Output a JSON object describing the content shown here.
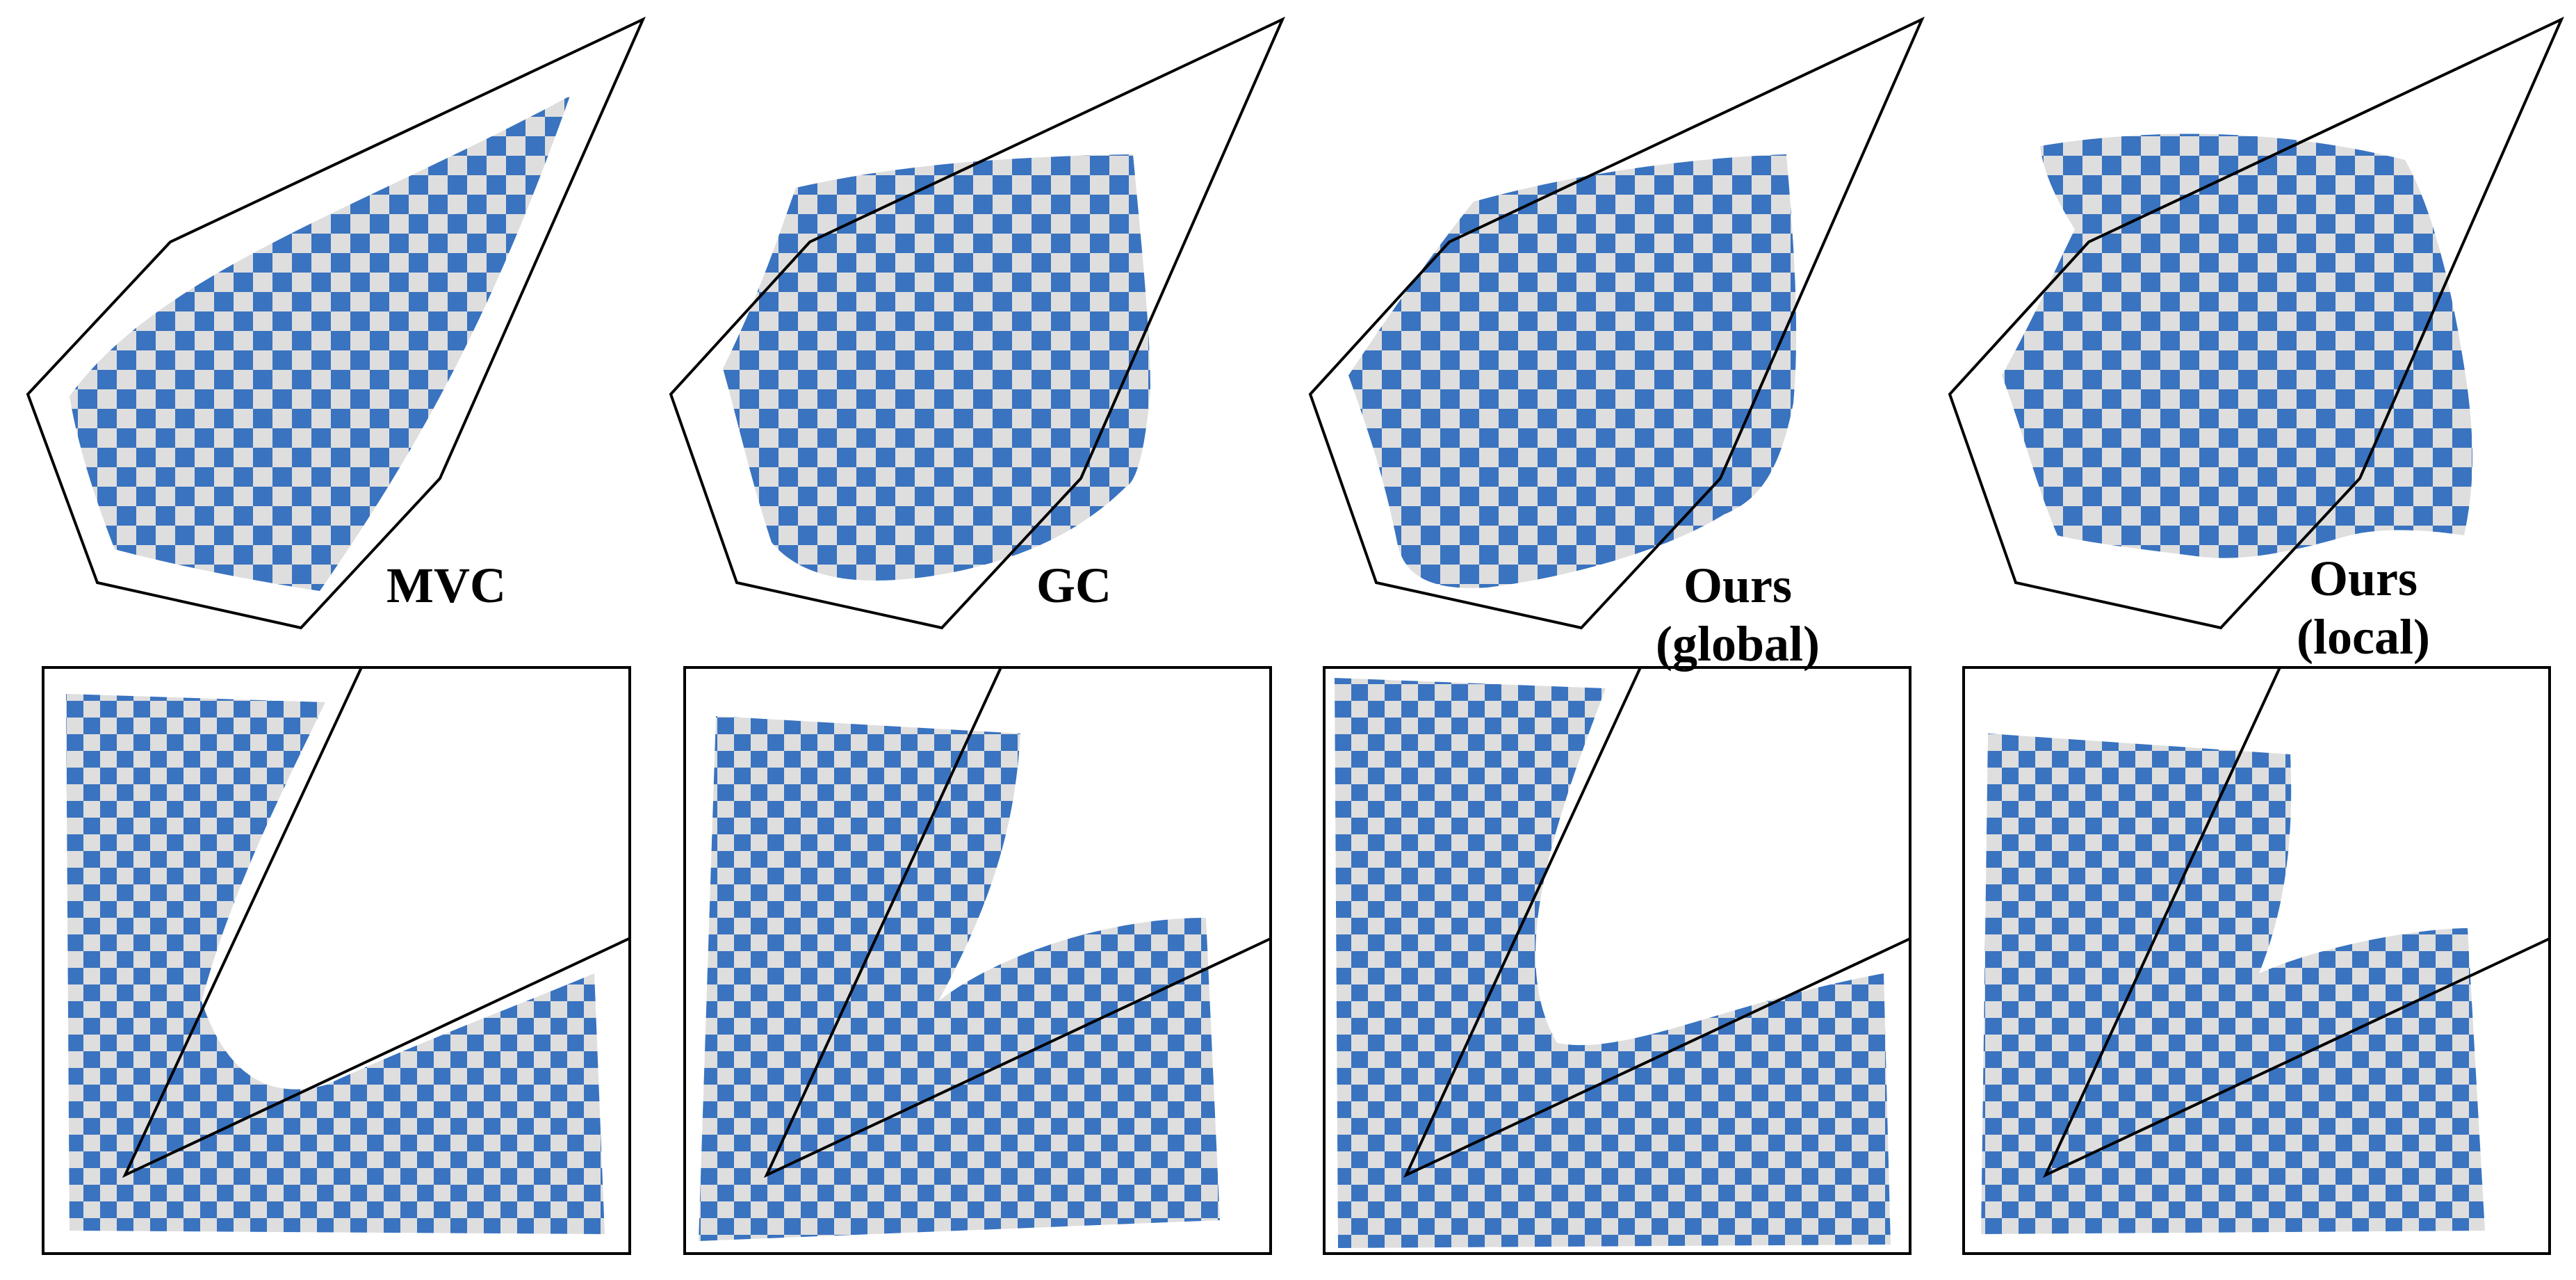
{
  "figure": {
    "background": "#ffffff",
    "checker_colors": {
      "blue": "#3a73bf",
      "light": "#dedede"
    },
    "cage_color": "#000000",
    "panels_top": [
      {
        "id": "mvc",
        "caption_lines": [
          "MVC"
        ]
      },
      {
        "id": "gc",
        "caption_lines": [
          "GC"
        ]
      },
      {
        "id": "ours-global",
        "caption_lines": [
          "Ours",
          "(global)"
        ]
      },
      {
        "id": "ours-local",
        "caption_lines": [
          "Ours",
          "(local)"
        ]
      }
    ],
    "panels_bottom": [
      {
        "id": "mvc"
      },
      {
        "id": "gc"
      },
      {
        "id": "ours-global"
      },
      {
        "id": "ours-local"
      }
    ]
  }
}
